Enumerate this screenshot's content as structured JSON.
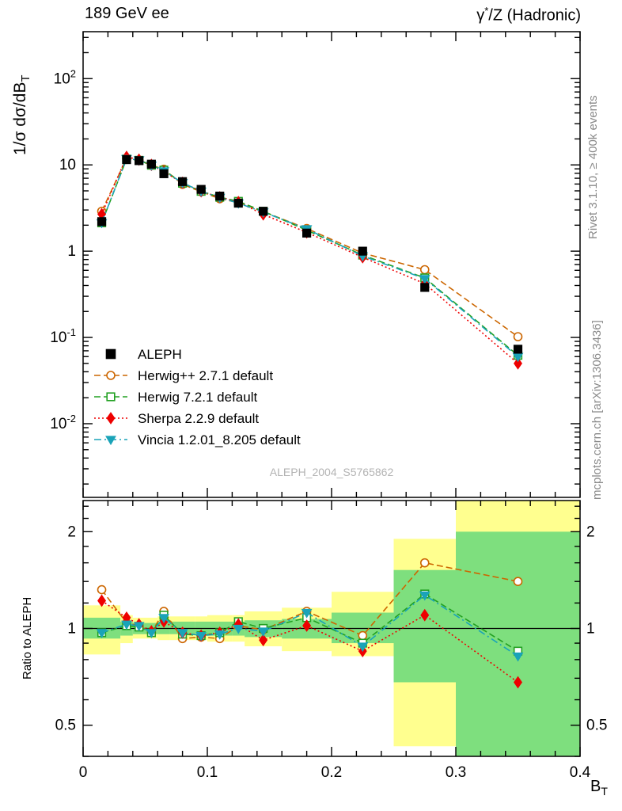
{
  "header": {
    "left": "189 GeV ee",
    "right_pre": "γ",
    "right_sup": "*",
    "right_post": "/Z (Hadronic)"
  },
  "side_texts": {
    "rivet": "Rivet 3.1.10, ≥ 400k events",
    "mcplots": "mcplots.cern.ch [arXiv:1306.3436]"
  },
  "watermark": "ALEPH_2004_S5765862",
  "axes": {
    "ylabel_main_pre": "1/σ dσ/dB",
    "ylabel_main_sub": "T",
    "ylabel_ratio": "Ratio to ALEPH",
    "xlabel_pre": "B",
    "xlabel_sub": "T"
  },
  "chart_data": {
    "type": "line",
    "title": "189 GeV ee — γ*/Z (Hadronic)",
    "xlabel": "B_T",
    "ylabel": "1/σ dσ/dB_T",
    "ratio_ylabel": "Ratio to ALEPH",
    "xlim": [
      0,
      0.4
    ],
    "ylim_main": [
      0.0014,
      350
    ],
    "ylim_ratio": [
      0.4,
      2.5
    ],
    "yscale_main": "log",
    "yscale_ratio": "log",
    "grid": false,
    "legend_position": "lower-left of main panel",
    "x_major_ticks": [
      0,
      0.1,
      0.2,
      0.3,
      0.4
    ],
    "x_tick_labels": [
      "0",
      "0.1",
      "0.2",
      "0.3",
      "0.4"
    ],
    "x_minor_step": 0.02,
    "y_major_exponents_main": [
      -2,
      -1,
      0,
      1,
      2
    ],
    "ratio_major_ticks": [
      0.5,
      1,
      2
    ],
    "ratio_tick_labels": [
      "0.5",
      "1",
      "2"
    ],
    "ratio_minor_ticks": [
      0.4,
      0.6,
      0.7,
      0.8,
      0.9,
      1.2,
      1.4,
      1.6,
      1.8,
      2.2,
      2.4
    ],
    "reference_line": 1.0,
    "bin_edges": [
      0,
      0.03,
      0.04,
      0.05,
      0.06,
      0.07,
      0.09,
      0.1,
      0.12,
      0.13,
      0.16,
      0.2,
      0.25,
      0.3,
      0.4
    ],
    "x": [
      0.015,
      0.035,
      0.045,
      0.055,
      0.065,
      0.08,
      0.095,
      0.11,
      0.125,
      0.145,
      0.18,
      0.225,
      0.275,
      0.35
    ],
    "series": [
      {
        "name": "ALEPH",
        "color": "#000000",
        "marker": "square",
        "filled": true,
        "line": "none",
        "values": [
          2.2,
          11.5,
          11.2,
          10.2,
          7.9,
          6.4,
          5.2,
          4.35,
          3.6,
          2.9,
          1.62,
          1.0,
          0.38,
          0.073
        ]
      },
      {
        "name": "Herwig++ 2.7.1 default",
        "color": "#cc6600",
        "marker": "circle",
        "filled": false,
        "line": "dashed",
        "values": [
          2.9,
          11.9,
          11.4,
          9.9,
          8.9,
          5.95,
          4.89,
          4.05,
          3.67,
          2.87,
          1.83,
          0.95,
          0.61,
          0.102
        ],
        "ratio": [
          1.32,
          1.04,
          1.02,
          0.97,
          1.13,
          0.93,
          0.94,
          0.93,
          1.02,
          0.99,
          1.13,
          0.95,
          1.6,
          1.4
        ]
      },
      {
        "name": "Herwig 7.2.1 default",
        "color": "#22a022",
        "marker": "square",
        "filled": false,
        "line": "dashed",
        "values": [
          2.13,
          11.7,
          11.3,
          9.9,
          8.7,
          6.14,
          4.94,
          4.22,
          3.78,
          2.9,
          1.75,
          0.9,
          0.49,
          0.062
        ],
        "ratio": [
          0.97,
          1.02,
          1.01,
          0.97,
          1.1,
          0.96,
          0.95,
          0.97,
          1.05,
          1.0,
          1.08,
          0.9,
          1.28,
          0.85
        ]
      },
      {
        "name": "Sherpa 2.2.9 default",
        "color": "#ee0000",
        "marker": "diamond",
        "filled": true,
        "line": "dotted",
        "values": [
          2.68,
          12.4,
          11.5,
          10.0,
          8.3,
          6.21,
          4.94,
          4.22,
          3.71,
          2.67,
          1.65,
          0.85,
          0.42,
          0.05
        ],
        "ratio": [
          1.22,
          1.08,
          1.03,
          0.98,
          1.05,
          0.97,
          0.95,
          0.97,
          1.03,
          0.92,
          1.02,
          0.85,
          1.1,
          0.68
        ]
      },
      {
        "name": "Vincia 1.2.01_8.205 default",
        "color": "#1aa3b8",
        "marker": "triangle-down",
        "filled": true,
        "line": "dashdot",
        "values": [
          2.13,
          11.8,
          11.4,
          9.9,
          8.5,
          6.21,
          4.94,
          4.18,
          3.6,
          2.84,
          1.81,
          0.88,
          0.48,
          0.06
        ],
        "ratio": [
          0.97,
          1.03,
          1.02,
          0.97,
          1.08,
          0.97,
          0.95,
          0.96,
          1.0,
          0.98,
          1.12,
          0.88,
          1.27,
          0.82
        ]
      }
    ],
    "bands": {
      "yellow_color": "#ffff8f",
      "green_color": "#7edf7e",
      "yellow": [
        [
          0.83,
          1.18
        ],
        [
          0.9,
          1.1
        ],
        [
          0.93,
          1.08
        ],
        [
          0.93,
          1.08
        ],
        [
          0.92,
          1.09
        ],
        [
          0.92,
          1.09
        ],
        [
          0.92,
          1.09
        ],
        [
          0.91,
          1.1
        ],
        [
          0.91,
          1.1
        ],
        [
          0.88,
          1.13
        ],
        [
          0.85,
          1.16
        ],
        [
          0.82,
          1.3
        ],
        [
          0.43,
          1.9
        ],
        [
          0.4,
          2.5
        ]
      ],
      "green": [
        [
          0.93,
          1.08
        ],
        [
          0.95,
          1.05
        ],
        [
          0.96,
          1.04
        ],
        [
          0.96,
          1.04
        ],
        [
          0.96,
          1.05
        ],
        [
          0.96,
          1.05
        ],
        [
          0.96,
          1.05
        ],
        [
          0.95,
          1.05
        ],
        [
          0.95,
          1.05
        ],
        [
          0.94,
          1.06
        ],
        [
          0.93,
          1.07
        ],
        [
          0.9,
          1.12
        ],
        [
          0.68,
          1.52
        ],
        [
          0.4,
          2.0
        ]
      ]
    }
  }
}
